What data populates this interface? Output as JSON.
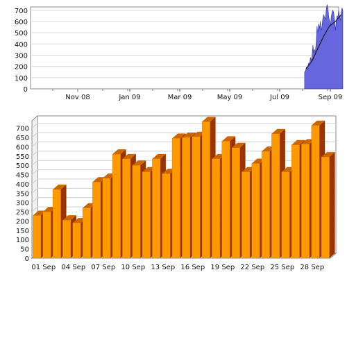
{
  "chart_data": [
    {
      "type": "area",
      "title": "",
      "xlabel": "",
      "ylabel": "",
      "x_ticks": [
        "Nov 08",
        "Jan 09",
        "Mar 09",
        "May 09",
        "Jul 09",
        "Sep 09"
      ],
      "y_ticks": [
        "0",
        "100",
        "200",
        "300",
        "400",
        "500",
        "600",
        "700"
      ],
      "ylim": [
        0,
        730
      ],
      "grid": true,
      "series": [
        {
          "x": [
            "2009-08-01",
            "2009-08-02",
            "2009-08-03",
            "2009-08-04",
            "2009-08-05",
            "2009-08-06",
            "2009-08-07",
            "2009-08-08",
            "2009-08-09",
            "2009-08-10",
            "2009-08-11",
            "2009-08-12",
            "2009-08-13",
            "2009-08-14",
            "2009-08-15",
            "2009-08-16",
            "2009-08-17",
            "2009-08-18",
            "2009-08-19",
            "2009-08-20",
            "2009-08-21",
            "2009-08-22",
            "2009-08-23",
            "2009-08-24",
            "2009-08-25",
            "2009-08-26",
            "2009-08-27",
            "2009-08-28",
            "2009-08-29",
            "2009-08-30",
            "2009-08-31",
            "2009-09-01",
            "2009-09-02",
            "2009-09-03",
            "2009-09-04",
            "2009-09-05",
            "2009-09-06",
            "2009-09-07",
            "2009-09-08",
            "2009-09-09",
            "2009-09-10",
            "2009-09-11",
            "2009-09-12",
            "2009-09-13",
            "2009-09-14",
            "2009-09-15",
            "2009-09-16"
          ],
          "values": [
            150,
            160,
            190,
            170,
            210,
            230,
            220,
            280,
            250,
            300,
            390,
            320,
            350,
            330,
            420,
            560,
            500,
            580,
            540,
            600,
            520,
            560,
            630,
            660,
            640,
            620,
            700,
            750,
            730,
            650,
            600,
            560,
            640,
            680,
            700,
            680,
            620,
            520,
            600,
            650,
            640,
            700,
            650,
            610,
            680,
            720,
            700
          ]
        },
        {
          "name": "",
          "style": "trend-line",
          "x": [
            "2009-08-03",
            "2009-08-10",
            "2009-08-17",
            "2009-08-24",
            "2009-08-31",
            "2009-09-07",
            "2009-09-14"
          ],
          "values": [
            180,
            250,
            360,
            470,
            560,
            600,
            660
          ]
        }
      ],
      "colors": {
        "fill": "#6666dd",
        "line": "#1a1a1a"
      }
    },
    {
      "type": "bar",
      "title": "",
      "xlabel": "",
      "ylabel": "",
      "x_ticks": [
        "01 Sep",
        "04 Sep",
        "07 Sep",
        "10 Sep",
        "13 Sep",
        "16 Sep",
        "19 Sep",
        "22 Sep",
        "25 Sep",
        "28 Sep"
      ],
      "y_ticks": [
        "0",
        "50",
        "100",
        "150",
        "200",
        "250",
        "300",
        "350",
        "400",
        "450",
        "500",
        "550",
        "600",
        "650",
        "700"
      ],
      "ylim": [
        0,
        740
      ],
      "grid": true,
      "categories": [
        "01 Sep",
        "02 Sep",
        "03 Sep",
        "04 Sep",
        "05 Sep",
        "06 Sep",
        "07 Sep",
        "08 Sep",
        "09 Sep",
        "10 Sep",
        "11 Sep",
        "12 Sep",
        "13 Sep",
        "14 Sep",
        "15 Sep",
        "16 Sep",
        "17 Sep",
        "18 Sep",
        "19 Sep",
        "20 Sep",
        "21 Sep",
        "22 Sep",
        "23 Sep",
        "24 Sep",
        "25 Sep",
        "26 Sep",
        "27 Sep",
        "28 Sep",
        "29 Sep",
        "30 Sep"
      ],
      "values": [
        230,
        250,
        370,
        205,
        190,
        270,
        410,
        430,
        560,
        535,
        500,
        465,
        535,
        455,
        645,
        650,
        655,
        735,
        535,
        630,
        595,
        465,
        510,
        575,
        670,
        465,
        610,
        615,
        715,
        545
      ],
      "colors": {
        "front": "#ff9900",
        "side": "#993300",
        "top": "#cc6600"
      }
    }
  ]
}
